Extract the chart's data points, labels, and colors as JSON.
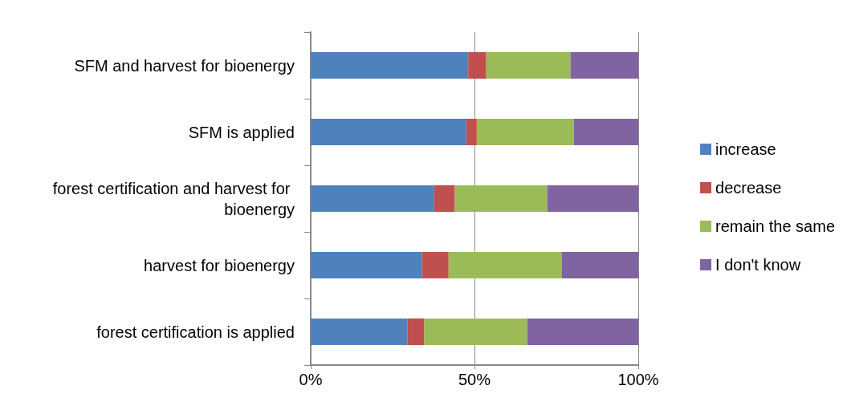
{
  "chart_data": {
    "type": "bar",
    "orientation": "horizontal",
    "stacked": true,
    "categories": [
      "SFM and harvest for bioenergy",
      "SFM is applied",
      "forest certification and harvest for bioenergy",
      "harvest for bioenergy",
      "forest certification is applied"
    ],
    "series": [
      {
        "name": "increase",
        "color": "#4f81bd",
        "values": [
          48.1,
          47.5,
          37.7,
          34.0,
          29.5
        ]
      },
      {
        "name": "decrease",
        "color": "#c0504d",
        "values": [
          5.5,
          3.2,
          6.3,
          8.1,
          5.2
        ]
      },
      {
        "name": "remain the same",
        "color": "#9bbb59",
        "values": [
          25.7,
          29.6,
          28.2,
          34.5,
          31.4
        ]
      },
      {
        "name": "I don't know",
        "color": "#8064a2",
        "values": [
          20.7,
          19.7,
          27.8,
          23.4,
          33.9
        ]
      }
    ],
    "xlim": [
      0,
      100
    ],
    "xticks": [
      {
        "value": 0,
        "label": "0%"
      },
      {
        "value": 50,
        "label": "50%"
      },
      {
        "value": 100,
        "label": "100%"
      }
    ],
    "grid": "x",
    "legend": "right"
  }
}
